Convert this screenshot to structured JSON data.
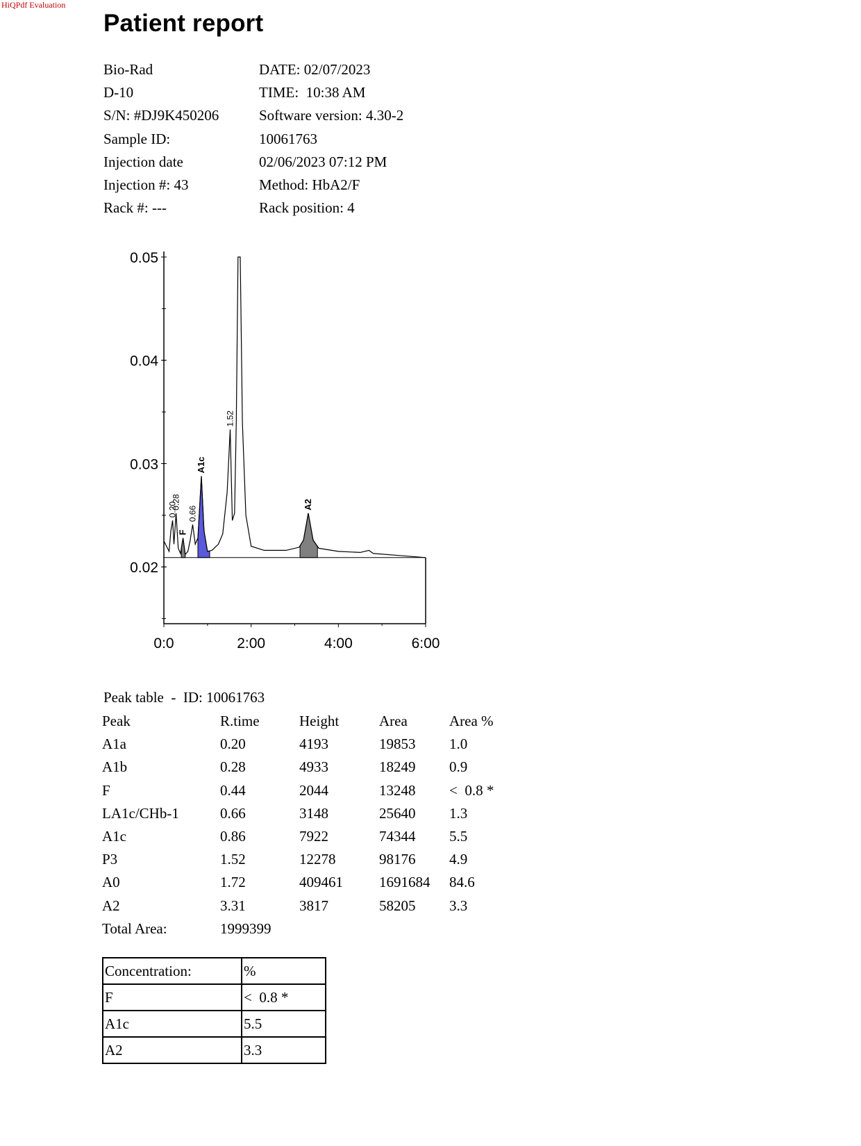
{
  "watermark": "HiQPdf Evaluation",
  "title": "Patient report",
  "info_rows": [
    {
      "left": "Bio-Rad",
      "right": "DATE: 02/07/2023"
    },
    {
      "left": "D-10",
      "right": "TIME:  10:38 AM"
    },
    {
      "left": "S/N: #DJ9K450206",
      "right": "Software version: 4.30-2"
    },
    {
      "left": "Sample ID:",
      "right": "10061763"
    },
    {
      "left": "Injection date",
      "right": "02/06/2023 07:12 PM"
    },
    {
      "left": "Injection #: 43",
      "right": "Method: HbA2/F"
    },
    {
      "left": "Rack #: ---",
      "right": "Rack position: 4"
    }
  ],
  "chart_data": {
    "type": "line",
    "x_tick_labels": [
      "0:0",
      "2:00",
      "4:00",
      "6:00"
    ],
    "x_ticks": [
      0,
      2,
      4,
      6
    ],
    "y_tick_labels": [
      "0.05",
      "0.04",
      "0.03",
      "0.02"
    ],
    "y_ticks": [
      0.05,
      0.04,
      0.03,
      0.02
    ],
    "xlim": [
      0,
      6
    ],
    "ylim": [
      0.0145,
      0.05
    ],
    "peak_labels": [
      {
        "label": "0.20",
        "rt": 0.2
      },
      {
        "label": "0.28",
        "rt": 0.28
      },
      {
        "label": "F",
        "rt": 0.44
      },
      {
        "label": "0.66",
        "rt": 0.66
      },
      {
        "label": "A1c",
        "rt": 0.86
      },
      {
        "label": "1.52",
        "rt": 1.52
      },
      {
        "label": "A2",
        "rt": 3.31
      }
    ],
    "trace": [
      [
        0.0,
        0.0225
      ],
      [
        0.12,
        0.0215
      ],
      [
        0.16,
        0.0235
      ],
      [
        0.2,
        0.0245
      ],
      [
        0.23,
        0.0222
      ],
      [
        0.28,
        0.0252
      ],
      [
        0.33,
        0.0218
      ],
      [
        0.38,
        0.0213
      ],
      [
        0.44,
        0.0228
      ],
      [
        0.49,
        0.0212
      ],
      [
        0.55,
        0.0215
      ],
      [
        0.6,
        0.0225
      ],
      [
        0.66,
        0.0241
      ],
      [
        0.72,
        0.0222
      ],
      [
        0.78,
        0.0228
      ],
      [
        0.86,
        0.0288
      ],
      [
        0.92,
        0.0235
      ],
      [
        1.0,
        0.0215
      ],
      [
        1.1,
        0.0216
      ],
      [
        1.25,
        0.0222
      ],
      [
        1.35,
        0.0232
      ],
      [
        1.45,
        0.0272
      ],
      [
        1.52,
        0.0333
      ],
      [
        1.57,
        0.0245
      ],
      [
        1.62,
        0.0252
      ],
      [
        1.66,
        0.034
      ],
      [
        1.7,
        0.05
      ],
      [
        1.75,
        0.05
      ],
      [
        1.8,
        0.034
      ],
      [
        1.88,
        0.025
      ],
      [
        2.0,
        0.022
      ],
      [
        2.3,
        0.0216
      ],
      [
        2.8,
        0.0216
      ],
      [
        3.1,
        0.0219
      ],
      [
        3.2,
        0.0226
      ],
      [
        3.31,
        0.0252
      ],
      [
        3.42,
        0.0226
      ],
      [
        3.55,
        0.0218
      ],
      [
        4.0,
        0.0215
      ],
      [
        4.5,
        0.0214
      ],
      [
        4.7,
        0.0216
      ],
      [
        4.8,
        0.0213
      ],
      [
        5.4,
        0.0211
      ],
      [
        6.0,
        0.0209
      ]
    ],
    "baseline": [
      [
        0.0,
        0.0209
      ],
      [
        6.0,
        0.0209
      ]
    ],
    "shaded_peaks": [
      {
        "name": "F",
        "from": 0.4,
        "to": 0.49,
        "color": "#808080"
      },
      {
        "name": "A1c",
        "from": 0.78,
        "to": 1.05,
        "color": "#5a5adc"
      },
      {
        "name": "A2",
        "from": 3.12,
        "to": 3.52,
        "color": "#808080"
      }
    ]
  },
  "peak_table": {
    "title": "Peak table  -  ID: 10061763",
    "headers": [
      "Peak",
      "R.time",
      "Height",
      "Area",
      "Area %"
    ],
    "rows": [
      [
        "A1a",
        "0.20",
        "4193",
        "19853",
        "1.0"
      ],
      [
        "A1b",
        "0.28",
        "4933",
        "18249",
        "0.9"
      ],
      [
        "F",
        "0.44",
        "2044",
        "13248",
        "<  0.8 *"
      ],
      [
        "LA1c/CHb-1",
        "0.66",
        "3148",
        "25640",
        "1.3"
      ],
      [
        "A1c",
        "0.86",
        "7922",
        "74344",
        "5.5"
      ],
      [
        "P3",
        "1.52",
        "12278",
        "98176",
        "4.9"
      ],
      [
        "A0",
        "1.72",
        "409461",
        "1691684",
        "84.6"
      ],
      [
        "A2",
        "3.31",
        "3817",
        "58205",
        "3.3"
      ]
    ],
    "total_label": "Total Area:",
    "total_value": "1999399"
  },
  "concentration": {
    "header": [
      "Concentration:",
      "%"
    ],
    "rows": [
      [
        "F",
        "<  0.8 *"
      ],
      [
        "A1c",
        "5.5"
      ],
      [
        "A2",
        "3.3"
      ]
    ]
  }
}
